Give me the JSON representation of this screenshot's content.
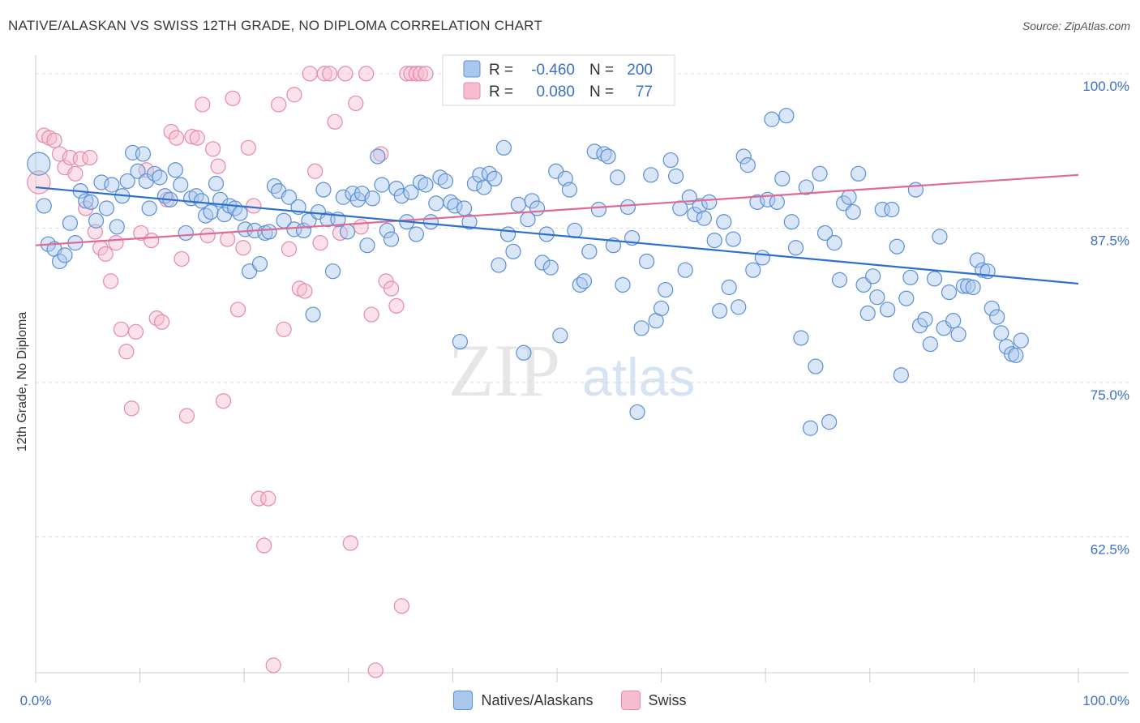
{
  "header": {
    "title": "NATIVE/ALASKAN VS SWISS 12TH GRADE, NO DIPLOMA CORRELATION CHART",
    "source": "Source: ZipAtlas.com"
  },
  "watermark": {
    "zip": "ZIP",
    "atlas": "atlas"
  },
  "colors": {
    "blue_fill": "#aac8ee",
    "blue_stroke": "#5b8fd6",
    "blue_line": "#2b6fd0",
    "pink_fill": "#f6bdd0",
    "pink_stroke": "#e58aa9",
    "pink_line": "#e06a93",
    "tick_label": "#3b6fcb",
    "grid": "#d9d9d9",
    "axis_text": "#333333"
  },
  "legend": {
    "rows": [
      {
        "r_label": "R =",
        "r_value": "-0.460",
        "n_label": "N =",
        "n_value": "200"
      },
      {
        "r_label": "R =",
        "r_value": "0.080",
        "n_label": "N =",
        "n_value": "77"
      }
    ]
  },
  "chart_data": {
    "type": "scatter",
    "title": "NATIVE/ALASKAN VS SWISS 12TH GRADE, NO DIPLOMA CORRELATION CHART",
    "xlabel": "",
    "ylabel": "12th Grade, No Diploma",
    "xlim": [
      0,
      100
    ],
    "ylim": [
      51.5,
      101.5
    ],
    "x_tick_labels": [
      "0.0%",
      "100.0%"
    ],
    "y_ticks": [
      100,
      87.5,
      75,
      62.5
    ],
    "y_tick_labels": [
      "100.0%",
      "87.5%",
      "75.0%",
      "62.5%"
    ],
    "grid": true,
    "legend_position": "top-center",
    "series": [
      {
        "name": "Natives/Alaskans",
        "color": "#aac8ee",
        "r": -0.46,
        "n": 200,
        "trend": {
          "x": [
            0,
            100
          ],
          "y": [
            90.8,
            83.0
          ]
        },
        "points": [
          [
            0.3,
            92.7
          ],
          [
            0.8,
            89.3
          ],
          [
            1.2,
            86.2
          ],
          [
            1.8,
            85.8
          ],
          [
            2.3,
            84.8
          ],
          [
            2.8,
            85.3
          ],
          [
            3.3,
            87.9
          ],
          [
            3.8,
            86.3
          ],
          [
            4.3,
            90.5
          ],
          [
            4.8,
            89.7
          ],
          [
            5.3,
            89.6
          ],
          [
            5.8,
            88.1
          ],
          [
            6.3,
            91.2
          ],
          [
            6.8,
            89.1
          ],
          [
            7.3,
            91.0
          ],
          [
            7.8,
            87.6
          ],
          [
            8.3,
            90.1
          ],
          [
            8.8,
            91.3
          ],
          [
            9.3,
            93.6
          ],
          [
            9.8,
            92.1
          ],
          [
            10.3,
            93.5
          ],
          [
            10.6,
            91.3
          ],
          [
            10.9,
            89.1
          ],
          [
            11.4,
            91.9
          ],
          [
            11.9,
            91.6
          ],
          [
            12.4,
            90.1
          ],
          [
            12.9,
            89.8
          ],
          [
            13.4,
            92.2
          ],
          [
            13.9,
            91.0
          ],
          [
            14.4,
            87.1
          ],
          [
            14.9,
            89.9
          ],
          [
            15.4,
            90.1
          ],
          [
            15.9,
            89.7
          ],
          [
            16.3,
            88.5
          ],
          [
            16.8,
            88.8
          ],
          [
            17.3,
            91.1
          ],
          [
            17.7,
            89.8
          ],
          [
            18.1,
            88.6
          ],
          [
            18.6,
            89.3
          ],
          [
            19.1,
            89.1
          ],
          [
            19.6,
            88.7
          ],
          [
            20.1,
            87.4
          ],
          [
            20.5,
            84.0
          ],
          [
            21.0,
            87.3
          ],
          [
            21.5,
            84.6
          ],
          [
            22.0,
            87.1
          ],
          [
            22.4,
            87.2
          ],
          [
            22.9,
            90.9
          ],
          [
            23.3,
            90.5
          ],
          [
            23.8,
            88.1
          ],
          [
            24.3,
            90.0
          ],
          [
            24.8,
            87.4
          ],
          [
            25.2,
            89.2
          ],
          [
            25.7,
            87.3
          ],
          [
            26.2,
            88.1
          ],
          [
            26.6,
            80.5
          ],
          [
            27.1,
            88.8
          ],
          [
            27.6,
            90.6
          ],
          [
            28.0,
            88.2
          ],
          [
            28.5,
            84.0
          ],
          [
            29.0,
            88.2
          ],
          [
            29.5,
            90.0
          ],
          [
            29.9,
            87.2
          ],
          [
            30.4,
            90.3
          ],
          [
            30.9,
            89.8
          ],
          [
            31.3,
            90.3
          ],
          [
            31.8,
            86.1
          ],
          [
            32.3,
            89.9
          ],
          [
            32.8,
            93.3
          ],
          [
            33.2,
            91.0
          ],
          [
            33.7,
            87.3
          ],
          [
            34.1,
            86.6
          ],
          [
            34.6,
            90.7
          ],
          [
            35.1,
            90.1
          ],
          [
            35.6,
            88.0
          ],
          [
            36.0,
            90.4
          ],
          [
            36.5,
            87.0
          ],
          [
            36.9,
            91.2
          ],
          [
            37.4,
            91.0
          ],
          [
            37.9,
            88.0
          ],
          [
            38.4,
            89.5
          ],
          [
            38.8,
            91.6
          ],
          [
            39.3,
            91.3
          ],
          [
            39.8,
            89.6
          ],
          [
            40.2,
            89.3
          ],
          [
            40.7,
            78.3
          ],
          [
            41.1,
            89.1
          ],
          [
            41.6,
            88.0
          ],
          [
            42.1,
            91.1
          ],
          [
            42.6,
            91.8
          ],
          [
            43.0,
            90.8
          ],
          [
            43.5,
            91.9
          ],
          [
            44.0,
            91.5
          ],
          [
            44.4,
            84.5
          ],
          [
            44.9,
            94.0
          ],
          [
            45.3,
            87.0
          ],
          [
            45.8,
            85.6
          ],
          [
            46.3,
            89.4
          ],
          [
            46.8,
            77.4
          ],
          [
            47.2,
            88.2
          ],
          [
            47.6,
            89.7
          ],
          [
            48.1,
            89.1
          ],
          [
            48.6,
            84.7
          ],
          [
            49.0,
            87.0
          ],
          [
            49.4,
            84.3
          ],
          [
            49.9,
            92.1
          ],
          [
            50.3,
            78.8
          ],
          [
            50.8,
            91.5
          ],
          [
            51.2,
            90.6
          ],
          [
            51.7,
            87.3
          ],
          [
            52.2,
            82.9
          ],
          [
            52.6,
            83.2
          ],
          [
            53.1,
            85.6
          ],
          [
            53.6,
            93.7
          ],
          [
            54.0,
            89.0
          ],
          [
            54.5,
            93.5
          ],
          [
            54.9,
            93.3
          ],
          [
            55.4,
            86.1
          ],
          [
            55.8,
            91.6
          ],
          [
            56.3,
            82.9
          ],
          [
            56.8,
            89.2
          ],
          [
            57.2,
            86.7
          ],
          [
            57.7,
            72.6
          ],
          [
            58.1,
            79.4
          ],
          [
            58.6,
            84.8
          ],
          [
            59.0,
            91.8
          ],
          [
            59.5,
            80.0
          ],
          [
            60.0,
            81.0
          ],
          [
            60.4,
            82.5
          ],
          [
            60.9,
            93.0
          ],
          [
            61.4,
            91.7
          ],
          [
            61.8,
            89.1
          ],
          [
            62.3,
            84.1
          ],
          [
            62.7,
            90.0
          ],
          [
            63.2,
            88.6
          ],
          [
            63.7,
            89.3
          ],
          [
            64.1,
            88.3
          ],
          [
            64.6,
            89.6
          ],
          [
            65.1,
            86.5
          ],
          [
            65.6,
            80.8
          ],
          [
            66.0,
            88.0
          ],
          [
            66.5,
            82.7
          ],
          [
            66.9,
            86.6
          ],
          [
            67.4,
            81.1
          ],
          [
            67.9,
            93.3
          ],
          [
            68.3,
            92.6
          ],
          [
            68.8,
            84.1
          ],
          [
            69.2,
            89.6
          ],
          [
            69.7,
            85.1
          ],
          [
            70.2,
            89.8
          ],
          [
            70.6,
            96.3
          ],
          [
            71.1,
            89.6
          ],
          [
            71.6,
            91.5
          ],
          [
            72.0,
            96.6
          ],
          [
            72.5,
            88.0
          ],
          [
            72.9,
            85.9
          ],
          [
            73.4,
            78.6
          ],
          [
            73.9,
            90.8
          ],
          [
            74.3,
            71.3
          ],
          [
            74.8,
            76.3
          ],
          [
            75.2,
            91.9
          ],
          [
            75.7,
            87.1
          ],
          [
            76.1,
            71.8
          ],
          [
            76.6,
            86.3
          ],
          [
            77.1,
            83.3
          ],
          [
            77.5,
            89.5
          ],
          [
            78.0,
            90.0
          ],
          [
            78.4,
            88.8
          ],
          [
            78.9,
            91.9
          ],
          [
            79.4,
            82.9
          ],
          [
            79.8,
            80.6
          ],
          [
            80.3,
            83.6
          ],
          [
            80.7,
            81.9
          ],
          [
            81.2,
            89.0
          ],
          [
            81.7,
            80.9
          ],
          [
            82.1,
            89.0
          ],
          [
            82.6,
            86.0
          ],
          [
            83.0,
            75.6
          ],
          [
            83.5,
            81.8
          ],
          [
            83.9,
            83.5
          ],
          [
            84.4,
            90.6
          ],
          [
            84.8,
            79.6
          ],
          [
            85.3,
            80.1
          ],
          [
            85.8,
            78.1
          ],
          [
            86.2,
            83.4
          ],
          [
            86.7,
            86.8
          ],
          [
            87.1,
            79.4
          ],
          [
            87.6,
            82.3
          ],
          [
            88.0,
            80.0
          ],
          [
            88.5,
            78.9
          ],
          [
            89.0,
            82.8
          ],
          [
            89.4,
            82.8
          ],
          [
            89.9,
            82.7
          ],
          [
            90.3,
            84.9
          ],
          [
            90.8,
            84.1
          ],
          [
            91.3,
            84.0
          ],
          [
            91.7,
            81.0
          ],
          [
            92.2,
            80.3
          ],
          [
            92.6,
            79.0
          ],
          [
            93.1,
            77.9
          ],
          [
            93.6,
            77.3
          ],
          [
            94.0,
            77.2
          ],
          [
            94.5,
            78.4
          ]
        ]
      },
      {
        "name": "Swiss",
        "color": "#f6bdd0",
        "r": 0.08,
        "n": 77,
        "trend": {
          "x": [
            0,
            100
          ],
          "y": [
            86.1,
            91.8
          ]
        },
        "points": [
          [
            0.3,
            91.2
          ],
          [
            0.8,
            95.0
          ],
          [
            1.3,
            94.8
          ],
          [
            1.8,
            94.6
          ],
          [
            2.3,
            93.5
          ],
          [
            2.8,
            92.4
          ],
          [
            3.3,
            93.2
          ],
          [
            3.8,
            91.9
          ],
          [
            4.3,
            93.1
          ],
          [
            4.8,
            89.1
          ],
          [
            5.2,
            93.2
          ],
          [
            5.7,
            87.2
          ],
          [
            6.2,
            85.9
          ],
          [
            6.7,
            85.4
          ],
          [
            7.2,
            83.2
          ],
          [
            7.7,
            86.3
          ],
          [
            8.2,
            79.3
          ],
          [
            8.7,
            77.5
          ],
          [
            9.2,
            72.9
          ],
          [
            9.6,
            79.1
          ],
          [
            10.1,
            87.1
          ],
          [
            10.6,
            92.2
          ],
          [
            11.1,
            86.5
          ],
          [
            11.6,
            80.2
          ],
          [
            12.1,
            79.9
          ],
          [
            12.6,
            89.8
          ],
          [
            13.0,
            95.3
          ],
          [
            13.5,
            94.8
          ],
          [
            14.0,
            85.0
          ],
          [
            14.5,
            72.3
          ],
          [
            15.0,
            94.9
          ],
          [
            15.5,
            94.8
          ],
          [
            16.0,
            97.5
          ],
          [
            16.5,
            86.9
          ],
          [
            17.0,
            93.9
          ],
          [
            17.5,
            92.5
          ],
          [
            18.0,
            73.5
          ],
          [
            18.4,
            86.6
          ],
          [
            18.9,
            98.0
          ],
          [
            19.4,
            80.9
          ],
          [
            19.9,
            85.9
          ],
          [
            20.4,
            94.0
          ],
          [
            20.9,
            89.3
          ],
          [
            21.4,
            65.6
          ],
          [
            21.9,
            61.8
          ],
          [
            22.3,
            65.6
          ],
          [
            22.8,
            52.1
          ],
          [
            23.3,
            97.5
          ],
          [
            23.8,
            79.3
          ],
          [
            24.3,
            85.8
          ],
          [
            24.8,
            98.3
          ],
          [
            25.3,
            82.6
          ],
          [
            25.8,
            82.4
          ],
          [
            26.3,
            100.0
          ],
          [
            26.8,
            92.1
          ],
          [
            27.3,
            86.3
          ],
          [
            27.7,
            100.0
          ],
          [
            28.2,
            100.0
          ],
          [
            28.7,
            96.1
          ],
          [
            29.2,
            87.1
          ],
          [
            29.7,
            100.0
          ],
          [
            30.2,
            62.0
          ],
          [
            30.7,
            97.6
          ],
          [
            31.2,
            87.6
          ],
          [
            31.7,
            100.0
          ],
          [
            32.2,
            80.5
          ],
          [
            32.6,
            51.7
          ],
          [
            33.1,
            93.5
          ],
          [
            33.6,
            83.2
          ],
          [
            34.1,
            82.6
          ],
          [
            34.6,
            81.2
          ],
          [
            35.1,
            56.9
          ],
          [
            35.6,
            100.0
          ],
          [
            36.0,
            100.0
          ],
          [
            36.5,
            100.0
          ],
          [
            36.9,
            100.0
          ],
          [
            37.4,
            100.0
          ]
        ]
      }
    ]
  }
}
